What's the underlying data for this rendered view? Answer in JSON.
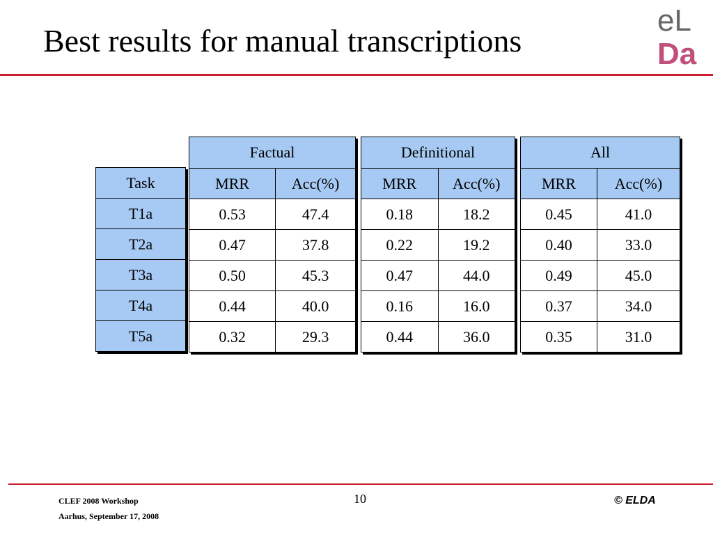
{
  "slide": {
    "title": "Best results for manual transcriptions",
    "page_number": "10"
  },
  "logo": {
    "line1": "eL",
    "line2": "Da",
    "accent_color": "#c0507a",
    "text_color": "#666666"
  },
  "footer": {
    "left_line1": "CLEF 2008 Workshop",
    "left_line2": "Aarhus, September 17, 2008",
    "copyright": "© ELDA"
  },
  "colors": {
    "rule": "#cc1f2e",
    "header_fill": "#a6caf3"
  },
  "table": {
    "task_header": "Task",
    "groups": [
      {
        "label": "Factual",
        "col1": "MRR",
        "col2": "Acc(%)"
      },
      {
        "label": "Definitional",
        "col1": "MRR",
        "col2": "Acc(%)"
      },
      {
        "label": "All",
        "col1": "MRR",
        "col2": "Acc(%)"
      }
    ],
    "rows": [
      {
        "task": "T1a",
        "factual": [
          "0.53",
          "47.4"
        ],
        "definitional": [
          "0.18",
          "18.2"
        ],
        "all": [
          "0.45",
          "41.0"
        ]
      },
      {
        "task": "T2a",
        "factual": [
          "0.47",
          "37.8"
        ],
        "definitional": [
          "0.22",
          "19.2"
        ],
        "all": [
          "0.40",
          "33.0"
        ]
      },
      {
        "task": "T3a",
        "factual": [
          "0.50",
          "45.3"
        ],
        "definitional": [
          "0.47",
          "44.0"
        ],
        "all": [
          "0.49",
          "45.0"
        ]
      },
      {
        "task": "T4a",
        "factual": [
          "0.44",
          "40.0"
        ],
        "definitional": [
          "0.16",
          "16.0"
        ],
        "all": [
          "0.37",
          "34.0"
        ]
      },
      {
        "task": "T5a",
        "factual": [
          "0.32",
          "29.3"
        ],
        "definitional": [
          "0.44",
          "36.0"
        ],
        "all": [
          "0.35",
          "31.0"
        ]
      }
    ]
  }
}
